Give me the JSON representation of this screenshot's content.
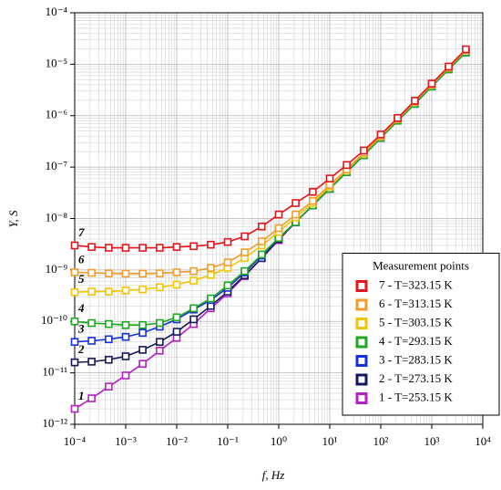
{
  "chart_data": {
    "type": "line",
    "xlabel": "f, Hz",
    "ylabel": "Y, S",
    "xscale": "log",
    "yscale": "log",
    "grid": true,
    "legend_title": "Measurement points",
    "legend_position": "lower right",
    "x": [
      0.0001,
      0.000215,
      0.000464,
      0.001,
      0.00215,
      0.00464,
      0.01,
      0.0215,
      0.0464,
      0.1,
      0.215,
      0.464,
      1,
      2.15,
      4.64,
      10,
      21.5,
      46.4,
      100,
      215,
      464,
      1000,
      2150,
      4640
    ],
    "series": [
      {
        "name": "7 - T=323.15 K",
        "color": "#e8141b",
        "values": [
          3e-09,
          2.8e-09,
          2.7e-09,
          2.7e-09,
          2.7e-09,
          2.7e-09,
          2.8e-09,
          2.9e-09,
          3.1e-09,
          3.5e-09,
          4.5e-09,
          7e-09,
          1.2e-08,
          2e-08,
          3.3e-08,
          6e-08,
          1.1e-07,
          2.1e-07,
          4.3e-07,
          9e-07,
          1.95e-06,
          4.2e-06,
          9e-06,
          1.95e-05
        ]
      },
      {
        "name": "6 - T=313.15 K",
        "color": "#f39c2a",
        "values": [
          9e-10,
          8.8e-10,
          8.6e-10,
          8.5e-10,
          8.5e-10,
          8.6e-10,
          9e-10,
          9.5e-10,
          1.1e-09,
          1.4e-09,
          2.2e-09,
          3.6e-09,
          6.5e-09,
          1.2e-08,
          2.2e-08,
          4.5e-08,
          9e-08,
          1.9e-07,
          4e-07,
          8.6e-07,
          1.86e-06,
          4e-06,
          8.6e-06,
          1.86e-05
        ]
      },
      {
        "name": "5 - T=303.15 K",
        "color": "#f5c400",
        "values": [
          3.7e-10,
          3.8e-10,
          3.8e-10,
          4e-10,
          4.2e-10,
          4.6e-10,
          5.2e-10,
          6.2e-10,
          8e-10,
          1.1e-09,
          1.7e-09,
          3e-09,
          5.5e-09,
          1.05e-08,
          2e-08,
          4.2e-08,
          8.8e-08,
          1.86e-07,
          4e-07,
          8.6e-07,
          1.86e-06,
          4e-06,
          8.6e-06,
          1.86e-05
        ]
      },
      {
        "name": "4 - T=293.15 K",
        "color": "#1da81f",
        "values": [
          1e-10,
          9.3e-11,
          8.9e-11,
          8.5e-11,
          8.5e-11,
          9.3e-11,
          1.2e-10,
          1.8e-10,
          2.8e-10,
          5e-10,
          9.5e-10,
          2e-09,
          4.2e-09,
          8.5e-09,
          1.8e-08,
          3.8e-08,
          8e-08,
          1.7e-07,
          3.7e-07,
          8e-07,
          1.7e-06,
          3.7e-06,
          8e-06,
          1.7e-05
        ]
      },
      {
        "name": "3 - T=283.15 K",
        "color": "#1630e0",
        "values": [
          4e-11,
          4.2e-11,
          4.5e-11,
          5e-11,
          6e-11,
          7.9e-11,
          1.1e-10,
          1.7e-10,
          2.6e-10,
          4.5e-10,
          8.9e-10,
          1.9e-09,
          4.2e-09,
          8.5e-09,
          1.8e-08,
          3.8e-08,
          8e-08,
          1.7e-07,
          3.7e-07,
          8e-07,
          1.7e-06,
          3.7e-06,
          8e-06,
          1.7e-05
        ]
      },
      {
        "name": "2 - T=273.15 K",
        "color": "#14185a",
        "values": [
          1.6e-11,
          1.65e-11,
          1.8e-11,
          2.1e-11,
          2.8e-11,
          4e-11,
          6.3e-11,
          1.1e-10,
          2e-10,
          3.8e-10,
          7.9e-10,
          1.7e-09,
          4e-09,
          8.5e-09,
          1.8e-08,
          3.8e-08,
          8e-08,
          1.7e-07,
          3.7e-07,
          8e-07,
          1.7e-06,
          3.7e-06,
          8e-06,
          1.7e-05
        ]
      },
      {
        "name": "1 - T=253.15 K",
        "color": "#b51fc4",
        "values": [
          2e-12,
          3.2e-12,
          5.4e-12,
          8.9e-12,
          1.5e-11,
          2.7e-11,
          4.8e-11,
          8.9e-11,
          1.8e-10,
          3.5e-10,
          7.6e-10,
          1.7e-09,
          3.8e-09,
          8.5e-09,
          1.8e-08,
          3.8e-08,
          8e-08,
          1.7e-07,
          3.7e-07,
          8e-07,
          1.7e-06,
          3.7e-06,
          8e-06,
          1.7e-05
        ]
      }
    ],
    "annotations": [
      "7",
      "6",
      "5",
      "4",
      "3",
      "2",
      "1"
    ],
    "xlim": [
      0.0001,
      10000
    ],
    "ylim": [
      1e-12,
      0.0001
    ],
    "xticks": [
      {
        "value": 0.0001,
        "label": "10⁻⁴"
      },
      {
        "value": 0.001,
        "label": "10⁻³"
      },
      {
        "value": 0.01,
        "label": "10⁻²"
      },
      {
        "value": 0.1,
        "label": "10⁻¹"
      },
      {
        "value": 1,
        "label": "10⁰"
      },
      {
        "value": 10,
        "label": "10¹"
      },
      {
        "value": 100,
        "label": "10²"
      },
      {
        "value": 1000,
        "label": "10³"
      },
      {
        "value": 10000,
        "label": "10⁴"
      }
    ],
    "yticks": [
      {
        "value": 1e-12,
        "label": "10⁻¹²"
      },
      {
        "value": 1e-11,
        "label": "10⁻¹¹"
      },
      {
        "value": 1e-10,
        "label": "10⁻¹⁰"
      },
      {
        "value": 1e-09,
        "label": "10⁻⁹"
      },
      {
        "value": 1e-08,
        "label": "10⁻⁸"
      },
      {
        "value": 1e-07,
        "label": "10⁻⁷"
      },
      {
        "value": 1e-06,
        "label": "10⁻⁶"
      },
      {
        "value": 1e-05,
        "label": "10⁻⁵"
      },
      {
        "value": 0.0001,
        "label": "10⁻⁴"
      }
    ]
  }
}
